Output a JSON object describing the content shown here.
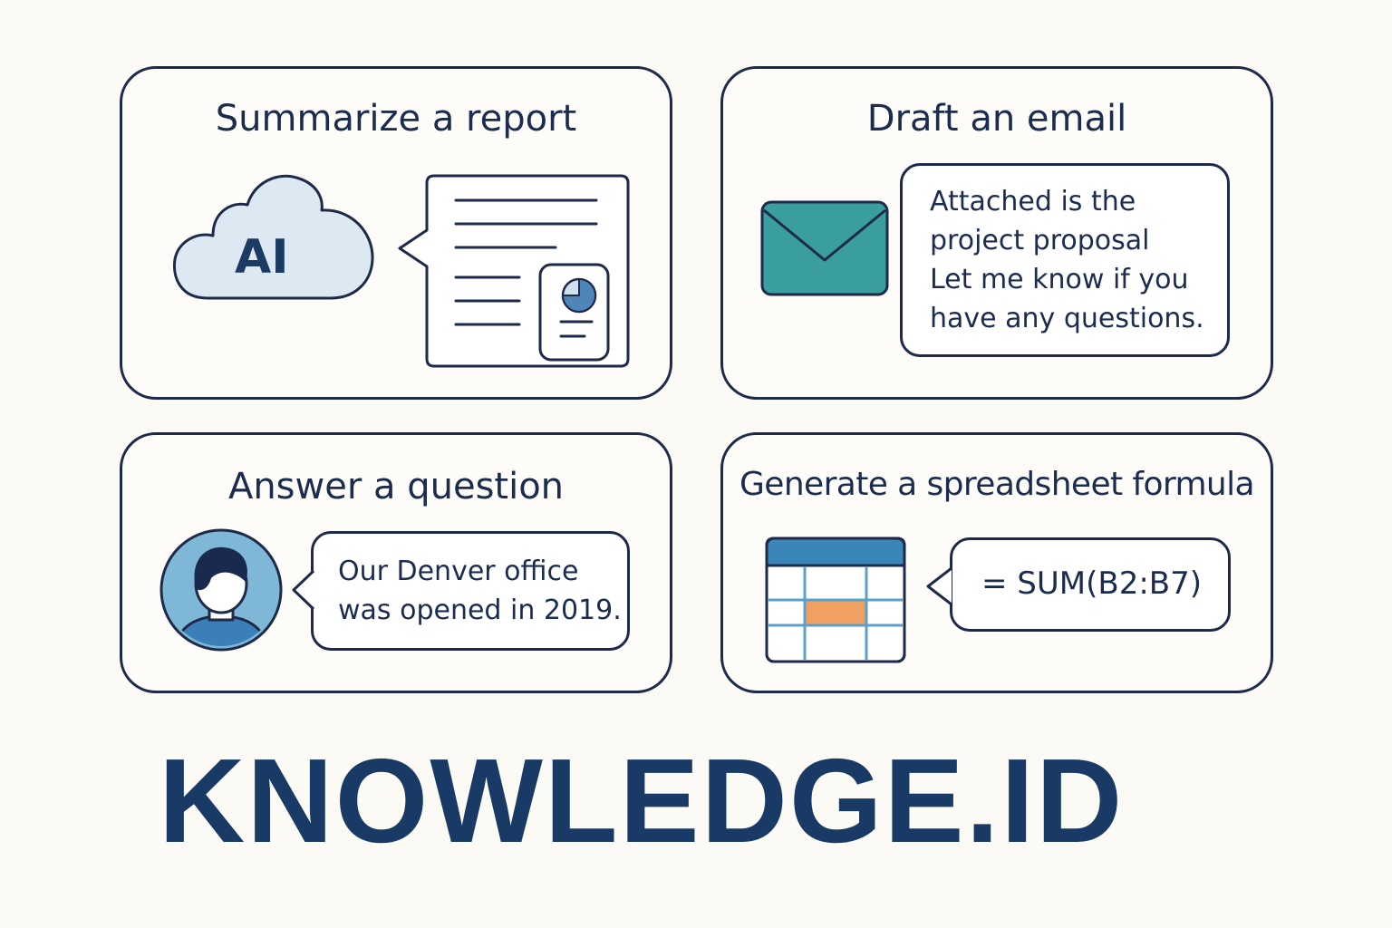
{
  "cards": {
    "summarize": {
      "title": "Summarize a report",
      "cloud_label": "AI",
      "icons": [
        "cloud-icon",
        "report-document-icon",
        "pie-chart-icon"
      ]
    },
    "email": {
      "title": "Draft an email",
      "message_lines": [
        "Attached is the",
        "project proposal",
        "Let me know if you",
        "have any questions."
      ],
      "icons": [
        "envelope-icon"
      ]
    },
    "answer": {
      "title": "Answer a question",
      "message_lines": [
        "Our Denver office",
        "was opened in 2019."
      ],
      "icons": [
        "user-avatar-icon"
      ]
    },
    "formula": {
      "title": "Generate a spreadsheet formula",
      "formula": "= SUM(B2:B7)",
      "icons": [
        "spreadsheet-icon"
      ]
    }
  },
  "brand": {
    "name": "KNOWLEDGE.ID"
  },
  "colors": {
    "background": "#fbfaf5",
    "outline": "#1e2a4a",
    "brand_text": "#183a64",
    "cloud_fill": "#dde9f2",
    "envelope_fill": "#3a9e9e",
    "avatar_ring": "#7fb8d6",
    "avatar_body": "#3a7fb8",
    "sheet_header": "#3a86b8",
    "sheet_highlight": "#f0a062",
    "chart_fill": "#4f86b8"
  }
}
